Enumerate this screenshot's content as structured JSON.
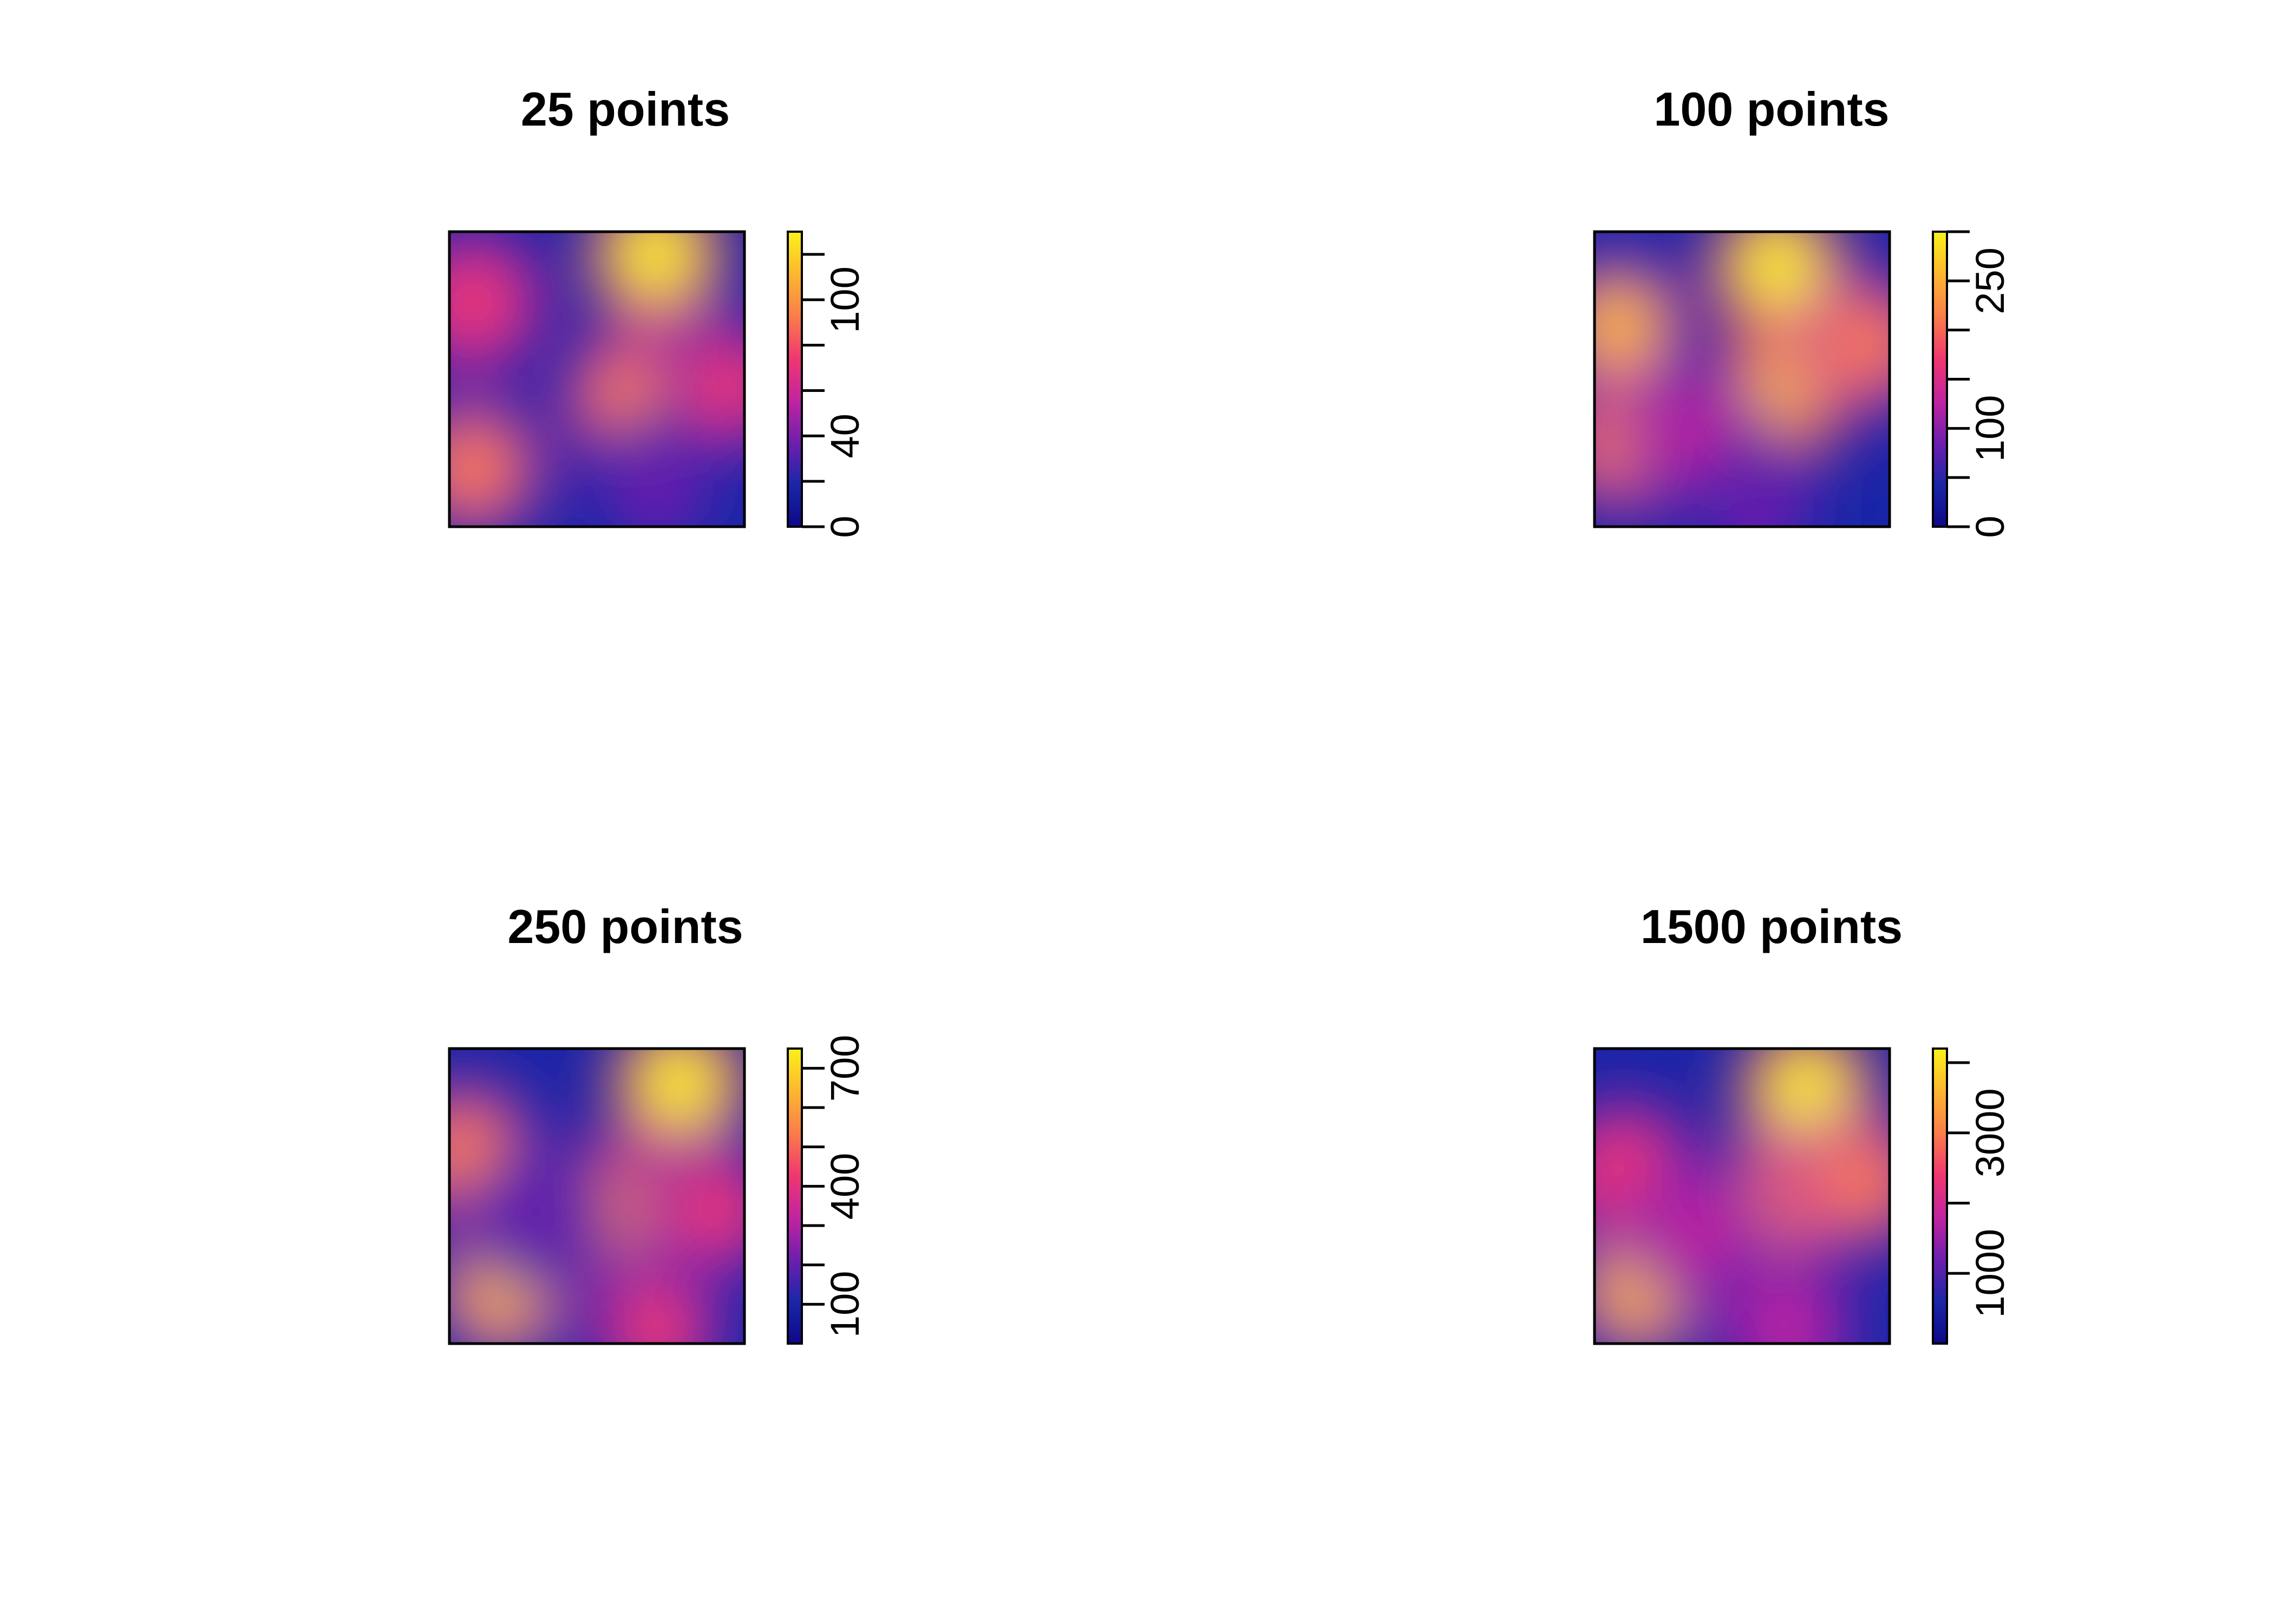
{
  "chart_data": [
    {
      "type": "heatmap",
      "title": "25 points",
      "colorbar": {
        "min": 0,
        "max": 130,
        "ticks": [
          0,
          20,
          40,
          60,
          80,
          100,
          120
        ],
        "labels": [
          "0",
          "40",
          "100"
        ],
        "label_values": [
          0,
          40,
          100
        ]
      },
      "blobs": [
        {
          "x": 0.7,
          "y": 0.08,
          "value": 130
        },
        {
          "x": 0.62,
          "y": 0.56,
          "value": 85
        },
        {
          "x": 0.08,
          "y": 0.24,
          "value": 80
        },
        {
          "x": 0.95,
          "y": 0.52,
          "value": 70
        },
        {
          "x": 0.08,
          "y": 0.8,
          "value": 85
        },
        {
          "x": 0.7,
          "y": 0.87,
          "value": 30
        }
      ]
    },
    {
      "type": "heatmap",
      "title": "100 points",
      "colorbar": {
        "min": 0,
        "max": 300,
        "ticks": [
          0,
          50,
          100,
          150,
          200,
          250,
          300
        ],
        "labels": [
          "0",
          "100",
          "250"
        ],
        "label_values": [
          0,
          100,
          250
        ]
      },
      "blobs": [
        {
          "x": 0.62,
          "y": 0.12,
          "value": 300
        },
        {
          "x": 0.65,
          "y": 0.52,
          "value": 270
        },
        {
          "x": 0.08,
          "y": 0.32,
          "value": 240
        },
        {
          "x": 0.1,
          "y": 0.72,
          "value": 200
        },
        {
          "x": 0.92,
          "y": 0.38,
          "value": 200
        },
        {
          "x": 0.35,
          "y": 0.7,
          "value": 110
        },
        {
          "x": 0.55,
          "y": 0.95,
          "value": 80
        }
      ]
    },
    {
      "type": "heatmap",
      "title": "250 points",
      "colorbar": {
        "min": 0,
        "max": 750,
        "ticks": [
          100,
          200,
          300,
          400,
          500,
          600,
          700
        ],
        "labels": [
          "100",
          "400",
          "700"
        ],
        "label_values": [
          100,
          400,
          700
        ]
      },
      "blobs": [
        {
          "x": 0.78,
          "y": 0.12,
          "value": 750
        },
        {
          "x": 0.55,
          "y": 0.55,
          "value": 560
        },
        {
          "x": 0.05,
          "y": 0.35,
          "value": 580
        },
        {
          "x": 0.18,
          "y": 0.82,
          "value": 600
        },
        {
          "x": 0.9,
          "y": 0.55,
          "value": 420
        },
        {
          "x": 0.7,
          "y": 0.95,
          "value": 400
        },
        {
          "x": 0.3,
          "y": 0.58,
          "value": 250
        }
      ]
    },
    {
      "type": "heatmap",
      "title": "1500 points",
      "colorbar": {
        "min": 0,
        "max": 4200,
        "ticks": [
          1000,
          2000,
          3000,
          4000
        ],
        "labels": [
          "1000",
          "3000"
        ],
        "label_values": [
          1000,
          3000
        ]
      },
      "blobs": [
        {
          "x": 0.72,
          "y": 0.14,
          "value": 4200
        },
        {
          "x": 0.62,
          "y": 0.52,
          "value": 3200
        },
        {
          "x": 0.1,
          "y": 0.42,
          "value": 2600
        },
        {
          "x": 0.15,
          "y": 0.82,
          "value": 3300
        },
        {
          "x": 0.9,
          "y": 0.45,
          "value": 2800
        },
        {
          "x": 0.65,
          "y": 0.95,
          "value": 2000
        },
        {
          "x": 0.35,
          "y": 0.62,
          "value": 1600
        }
      ]
    }
  ],
  "colors": {
    "colormap": [
      "#0d0887",
      "#1a26a8",
      "#6e1fae",
      "#c224a0",
      "#f0376f",
      "#fa7d4a",
      "#fdb72f",
      "#f9f21a"
    ],
    "frame": "#000000"
  }
}
